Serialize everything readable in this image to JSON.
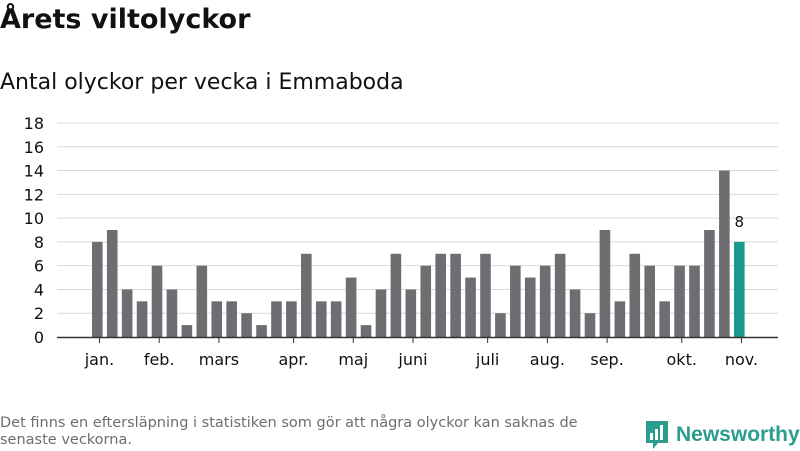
{
  "header": {
    "title": "Årets viltolyckor",
    "subtitle": "Antal olyckor per vecka i Emmaboda"
  },
  "footer": {
    "note": "Det finns en eftersläpning i statistiken som gör att några olyckor kan saknas de senaste veckorna.",
    "brand": "Newsworthy",
    "brand_icon": "newsworthy-logo-icon"
  },
  "colors": {
    "bar": "#6e6d72",
    "highlight": "#1a9a8e",
    "grid": "#d9d9d9",
    "axis": "#333333",
    "brand": "#2a9d8f"
  },
  "chart_data": {
    "type": "bar",
    "title": "Antal olyckor per vecka i Emmaboda",
    "xlabel": "",
    "ylabel": "",
    "ylim": [
      0,
      18
    ],
    "yticks": [
      0,
      2,
      4,
      6,
      8,
      10,
      12,
      14,
      16,
      18
    ],
    "grid": true,
    "values": [
      8,
      9,
      4,
      3,
      6,
      4,
      1,
      6,
      3,
      3,
      2,
      1,
      3,
      3,
      7,
      3,
      3,
      5,
      1,
      4,
      7,
      4,
      6,
      7,
      7,
      5,
      7,
      2,
      6,
      5,
      6,
      7,
      4,
      2,
      9,
      3,
      7,
      6,
      3,
      6,
      6,
      9,
      14,
      8
    ],
    "highlight_index": 43,
    "highlight_label": "8",
    "month_labels": [
      {
        "label": "jan.",
        "at": 0.5
      },
      {
        "label": "feb.",
        "at": 4.5
      },
      {
        "label": "mars",
        "at": 8.5
      },
      {
        "label": "apr.",
        "at": 13.5
      },
      {
        "label": "maj",
        "at": 17.5
      },
      {
        "label": "juni",
        "at": 21.5
      },
      {
        "label": "juli",
        "at": 26.5
      },
      {
        "label": "aug.",
        "at": 30.5
      },
      {
        "label": "sep.",
        "at": 34.5
      },
      {
        "label": "okt.",
        "at": 39.5
      },
      {
        "label": "nov.",
        "at": 43.5
      }
    ]
  }
}
